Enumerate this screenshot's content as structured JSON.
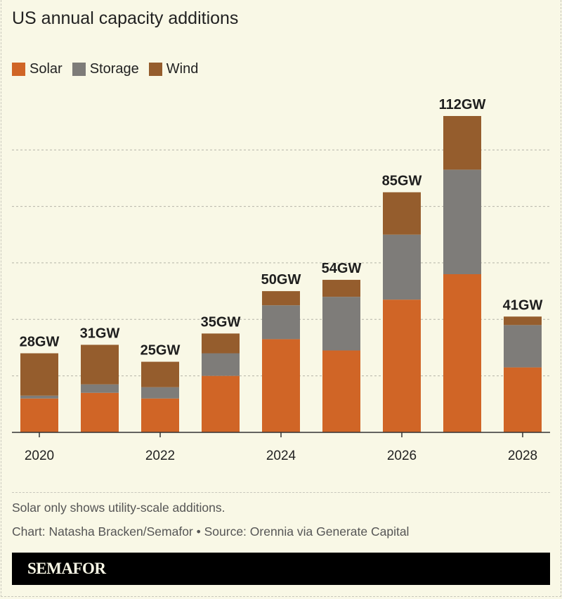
{
  "chart_data": {
    "type": "bar",
    "stacked": true,
    "title": "US annual capacity additions",
    "categories": [
      "2020",
      "2021",
      "2022",
      "2023",
      "2024",
      "2025",
      "2026",
      "2027",
      "2028"
    ],
    "x_tick_labels": [
      "2020",
      "2022",
      "2024",
      "2026",
      "2028"
    ],
    "series": [
      {
        "name": "Solar",
        "color": "#d06526",
        "values": [
          12,
          14,
          12,
          20,
          33,
          29,
          47,
          56,
          23
        ]
      },
      {
        "name": "Storage",
        "color": "#7e7c79",
        "values": [
          1,
          3,
          4,
          8,
          12,
          19,
          23,
          37,
          15
        ]
      },
      {
        "name": "Wind",
        "color": "#955d2d",
        "values": [
          15,
          14,
          9,
          7,
          5,
          6,
          15,
          19,
          3
        ]
      }
    ],
    "totals": [
      "28GW",
      "31GW",
      "25GW",
      "35GW",
      "50GW",
      "54GW",
      "85GW",
      "112GW",
      "41GW"
    ],
    "ylim": [
      0,
      112
    ],
    "grid": true,
    "gridlines": [
      20,
      40,
      60,
      80,
      100
    ],
    "legend_position": "top-left",
    "xlabel": "",
    "ylabel": ""
  },
  "notes": {
    "footnote": "Solar only shows utility-scale additions.",
    "credit": "Chart: Natasha Bracken/Semafor • Source: Orennia via Generate Capital"
  },
  "brand": "SEMAFOR",
  "background": "#f9f8e6"
}
